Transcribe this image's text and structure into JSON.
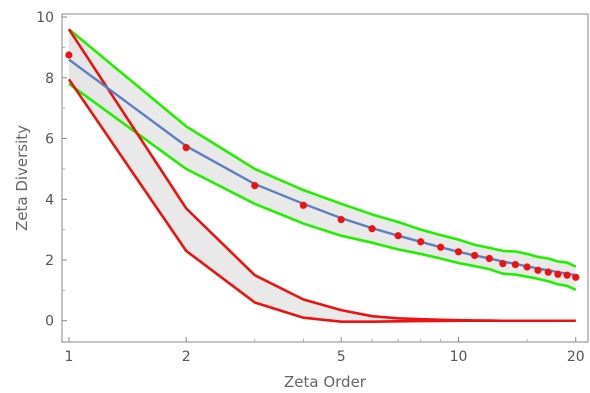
{
  "chart_data": {
    "type": "line",
    "xlabel": "Zeta Order",
    "ylabel": "Zeta Diversity",
    "x_scale": "log",
    "xlim": [
      0.96,
      21.5
    ],
    "ylim": [
      -0.7,
      10.1
    ],
    "x_ticks": [
      1,
      2,
      5,
      10,
      20
    ],
    "x_tick_labels": [
      "1",
      "2",
      "5",
      "10",
      "20"
    ],
    "y_ticks": [
      0,
      2,
      4,
      6,
      8,
      10
    ],
    "y_tick_labels": [
      "0",
      "2",
      "4",
      "6",
      "8",
      "10"
    ],
    "grid": false,
    "series": [
      {
        "role": "observed-points",
        "color": "#ee1111",
        "x": [
          1,
          2,
          3,
          4,
          5,
          6,
          7,
          8,
          9,
          10,
          11,
          12,
          13,
          14,
          15,
          16,
          17,
          18,
          19,
          20
        ],
        "y": [
          8.75,
          5.7,
          4.45,
          3.8,
          3.33,
          3.03,
          2.8,
          2.6,
          2.42,
          2.27,
          2.15,
          2.05,
          1.88,
          1.85,
          1.77,
          1.66,
          1.6,
          1.53,
          1.5,
          1.43
        ]
      },
      {
        "role": "power-law-fit",
        "color": "#5b7fc0",
        "x": [
          1,
          2,
          3,
          4,
          5,
          6,
          7,
          8,
          9,
          10,
          11,
          12,
          13,
          14,
          15,
          16,
          17,
          18,
          19,
          20
        ],
        "y": [
          8.6,
          5.75,
          4.5,
          3.85,
          3.38,
          3.05,
          2.8,
          2.6,
          2.42,
          2.27,
          2.15,
          2.05,
          1.95,
          1.87,
          1.79,
          1.72,
          1.66,
          1.6,
          1.55,
          1.5
        ]
      },
      {
        "role": "power-law-band",
        "color": "#22ee00",
        "fill": "#e5e5e5",
        "x": [
          1,
          2,
          3,
          4,
          5,
          6,
          7,
          8,
          9,
          10,
          11,
          12,
          13,
          14,
          15,
          16,
          17,
          18,
          19,
          20
        ],
        "upper": [
          9.6,
          6.4,
          5.0,
          4.3,
          3.85,
          3.5,
          3.25,
          3.0,
          2.82,
          2.67,
          2.5,
          2.4,
          2.3,
          2.28,
          2.2,
          2.1,
          2.05,
          1.95,
          1.92,
          1.78
        ],
        "lower": [
          7.8,
          5.0,
          3.85,
          3.2,
          2.8,
          2.57,
          2.35,
          2.2,
          2.05,
          1.9,
          1.8,
          1.7,
          1.55,
          1.52,
          1.45,
          1.38,
          1.3,
          1.2,
          1.15,
          1.02
        ]
      },
      {
        "role": "exponential-band",
        "color": "#ee1111",
        "fill": "#e5e5e5",
        "x": [
          1,
          2,
          3,
          4,
          5,
          6,
          7,
          8,
          9,
          10,
          11,
          12,
          13,
          14,
          15,
          16,
          17,
          18,
          19,
          20
        ],
        "upper": [
          9.6,
          3.7,
          1.5,
          0.7,
          0.35,
          0.15,
          0.08,
          0.05,
          0.03,
          0.02,
          0.01,
          0.005,
          0,
          0,
          0,
          0,
          0,
          0,
          0,
          0
        ],
        "lower": [
          7.95,
          2.3,
          0.6,
          0.1,
          -0.03,
          -0.03,
          -0.02,
          -0.01,
          -0.005,
          0,
          0,
          0,
          0,
          0,
          0,
          0,
          0,
          0,
          0,
          0
        ]
      }
    ]
  }
}
